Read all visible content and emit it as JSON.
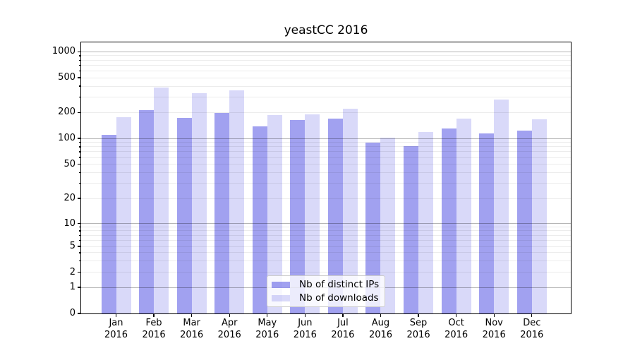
{
  "chart_data": {
    "type": "bar",
    "title": "yeastCC 2016",
    "x_categories": [
      "Jan",
      "Feb",
      "Mar",
      "Apr",
      "May",
      "Jun",
      "Jul",
      "Aug",
      "Sep",
      "Oct",
      "Nov",
      "Dec"
    ],
    "x_year": "2016",
    "series": [
      {
        "name": "Nb of distinct IPs",
        "color_hex": "#1e1edc",
        "alpha": 0.42,
        "values": [
          110,
          213,
          172,
          197,
          138,
          163,
          170,
          90,
          82,
          130,
          115,
          124
        ]
      },
      {
        "name": "Nb of downloads",
        "color_hex": "#1e1edc",
        "alpha": 0.17,
        "values": [
          175,
          385,
          334,
          360,
          186,
          190,
          221,
          101,
          118,
          170,
          281,
          167
        ]
      }
    ],
    "y_axis": {
      "scale": "log",
      "tick_values": [
        0,
        1,
        2,
        5,
        10,
        20,
        50,
        100,
        200,
        500,
        1000
      ],
      "tick_labels": [
        "0",
        "1",
        "2",
        "5",
        "10",
        "20",
        "50",
        "100",
        "200",
        "500",
        "1000"
      ]
    },
    "grid": true,
    "legend_position": "lower center",
    "legend_entries": [
      "Nb of distinct IPs",
      "Nb of downloads"
    ]
  }
}
